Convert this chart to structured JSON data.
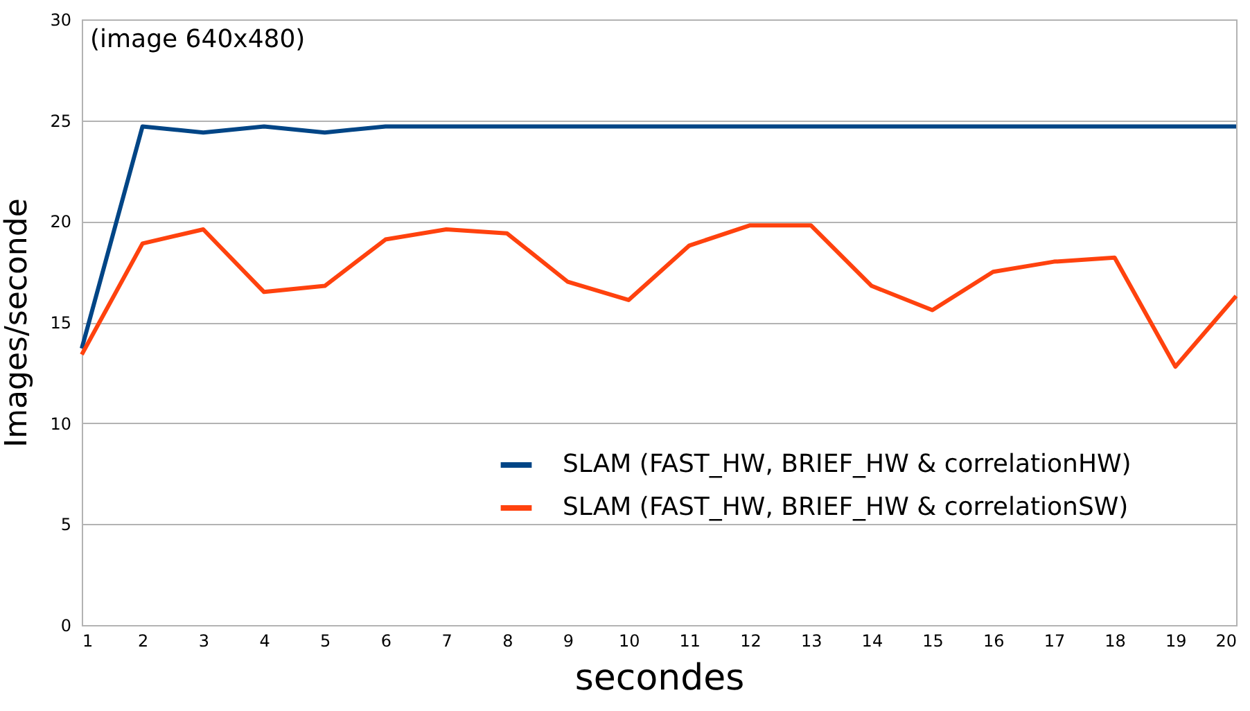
{
  "chart_data": {
    "type": "line",
    "xlabel": "secondes",
    "ylabel": "Images/seconde",
    "annotations": [
      "(image 640x480)"
    ],
    "x": [
      1,
      2,
      3,
      4,
      5,
      6,
      7,
      8,
      9,
      10,
      11,
      12,
      13,
      14,
      15,
      16,
      17,
      18,
      19,
      20
    ],
    "series": [
      {
        "name": "SLAM (FAST_HW, BRIEF_HW & correlationHW)",
        "color": "#004586",
        "values": [
          13.7,
          24.7,
          24.4,
          24.7,
          24.4,
          24.7,
          24.7,
          24.7,
          24.7,
          24.7,
          24.7,
          24.7,
          24.7,
          24.7,
          24.7,
          24.7,
          24.7,
          24.7,
          24.7,
          24.7
        ]
      },
      {
        "name": "SLAM (FAST_HW, BRIEF_HW & correlationSW)",
        "color": "#ff420e",
        "values": [
          13.4,
          18.9,
          19.6,
          16.5,
          16.8,
          19.1,
          19.6,
          19.4,
          17.0,
          16.1,
          18.8,
          19.8,
          19.8,
          16.8,
          15.6,
          17.5,
          18.0,
          18.2,
          12.8,
          16.3
        ]
      }
    ],
    "xlim": [
      1,
      20
    ],
    "xticks": [
      1,
      2,
      3,
      4,
      5,
      6,
      7,
      8,
      9,
      10,
      11,
      12,
      13,
      14,
      15,
      16,
      17,
      18,
      19,
      20
    ],
    "ylim": [
      0,
      30
    ],
    "yticks": [
      0,
      5,
      10,
      15,
      20,
      25,
      30
    ],
    "grid": "y",
    "legend": "bottom right",
    "marker": "none",
    "line_style": "solid"
  }
}
